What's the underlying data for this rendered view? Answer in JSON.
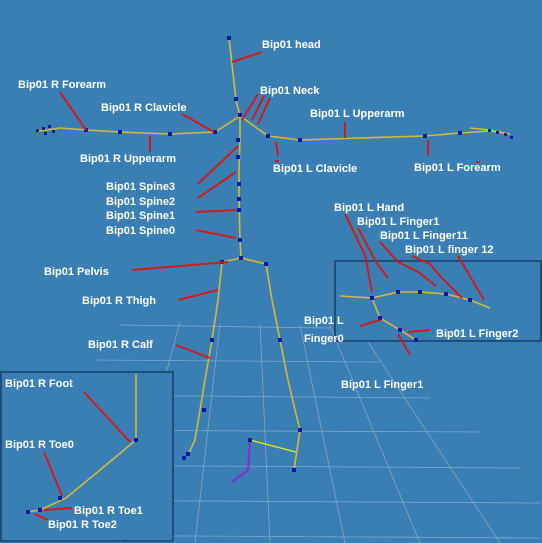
{
  "bones": {
    "head": "Bip01 head",
    "neck": "Bip01 Neck",
    "r_forearm": "Bip01 R Forearm",
    "r_clavicle": "Bip01 R Clavicle",
    "r_upperarm": "Bip01 R Upperarm",
    "l_upperarm": "Bip01 L Upperarm",
    "l_clavicle": "Bip01 L Clavicle",
    "l_forearm": "Bip01 L Forearm",
    "spine3": "Bip01 Spine3",
    "spine2": "Bip01 Spine2",
    "spine1": "Bip01 Spine1",
    "spine0": "Bip01 Spine0",
    "pelvis": "Bip01 Pelvis",
    "r_thigh": "Bip01 R Thigh",
    "r_calf": "Bip01 R Calf"
  },
  "hand_inset": {
    "l_hand": "Bip01 L Hand",
    "l_finger1": "Bip01 L Finger1",
    "l_finger11": "Bip01 L Finger11",
    "l_finger12": "Bip01 L finger 12",
    "l_finger0_a": "Bip01 L",
    "l_finger0_b": "Finger0",
    "l_finger2": "Bip01 L Finger2",
    "l_finger1_bottom": "Bip01 L Finger1"
  },
  "foot_inset": {
    "r_foot": "Bip01 R Foot",
    "r_toe0": "Bip01 R Toe0",
    "r_toe1": "Bip01 R Toe1",
    "r_toe2": "Bip01 R Toe2"
  },
  "colors": {
    "background": "#3a7fb4",
    "bone": "#d8b838",
    "joint": "#0a1aa8",
    "leader": "#d21a1a",
    "label": "#ffffff"
  }
}
